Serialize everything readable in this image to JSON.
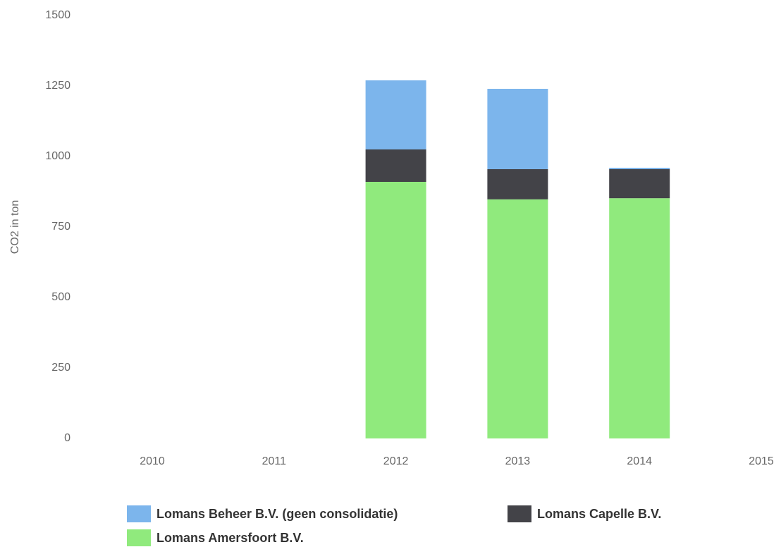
{
  "chart_data": {
    "type": "stacked_bar",
    "y_axis_label": "CO2 in ton",
    "categories": [
      "2010",
      "2011",
      "2012",
      "2013",
      "2014",
      "2015"
    ],
    "series": [
      {
        "name": "Lomans Amersfoort B.V.",
        "color": "#90ea7d",
        "values": [
          null,
          null,
          910,
          848,
          852,
          null
        ]
      },
      {
        "name": "Lomans Capelle B.V.",
        "color": "#434348",
        "values": [
          null,
          null,
          115,
          107,
          103,
          null
        ]
      },
      {
        "name": "Lomans Beheer B.V. (geen consolidatie)",
        "color": "#7cb5ec",
        "values": [
          null,
          null,
          245,
          285,
          5,
          null
        ]
      }
    ],
    "ylim": [
      0,
      1500
    ],
    "yticks": [
      0,
      250,
      500,
      750,
      1000,
      1250,
      1500
    ],
    "grid": false
  }
}
